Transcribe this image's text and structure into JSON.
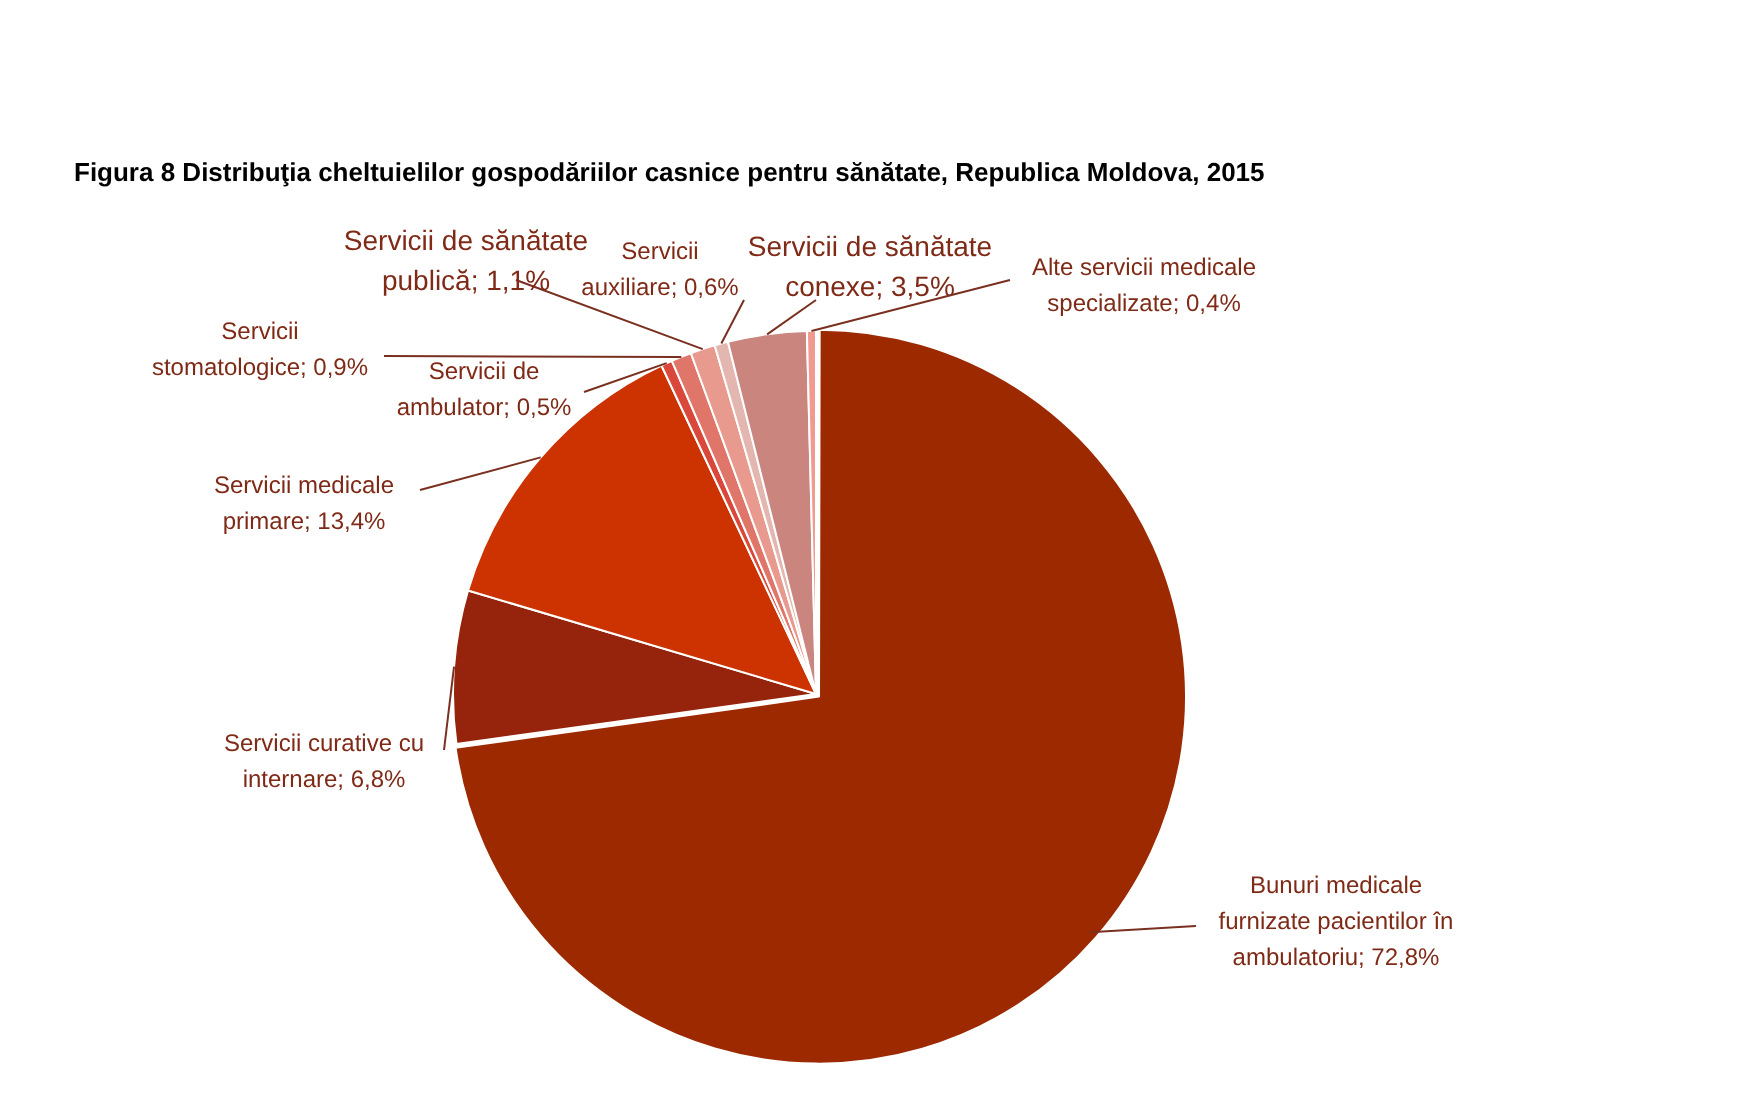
{
  "chart_data": {
    "type": "pie",
    "title": "Figura 8 Distribuţia cheltuielilor gospodăriilor casnice pentru sănătate, Republica Moldova, 2015",
    "categories": [
      "Bunuri medicale furnizate pacientilor în ambulatoriu",
      "Servicii curative cu internare",
      "Servicii medicale primare",
      "Servicii de ambulator",
      "Servicii stomatologice",
      "Servicii de sănătate publică",
      "Servicii auxiliare",
      "Servicii de sănătate conexe",
      "Alte servicii medicale specializate"
    ],
    "values": [
      72.8,
      6.8,
      13.4,
      0.5,
      0.9,
      1.1,
      0.6,
      3.5,
      0.4
    ],
    "value_labels": [
      "72,8%",
      "6,8%",
      "13,4%",
      "0,5%",
      "0,9%",
      "1,1%",
      "0,6%",
      "3,5%",
      "0,4%"
    ],
    "colors": [
      "#9c2900",
      "#96240c",
      "#cc3300",
      "#d9483a",
      "#e0766a",
      "#e89a8f",
      "#e3b7b0",
      "#c9857e",
      "#f29a8f"
    ],
    "legend": false
  }
}
